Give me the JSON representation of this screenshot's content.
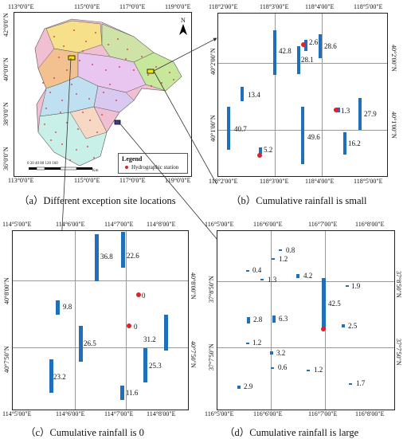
{
  "panel_a": {
    "caption": "（a）Different exception site locations",
    "top_ticks": [
      "113°0'0\"E",
      "115°0'0\"E",
      "117°0'0\"E",
      "119°0'0\"E"
    ],
    "bottom_ticks": [
      "113°0'0\"E",
      "115°0'0\"E",
      "117°0'0\"E",
      "119°0'0\"E"
    ],
    "left_ticks": [
      "42°0'0\"N",
      "40°0'0\"N",
      "38°0'0\"N",
      "36°0'0\"N"
    ],
    "north_label": "N",
    "legend_title": "Legend",
    "legend_item": "Hydrographic station",
    "scale_numbers": "0  20  40    80    120   160",
    "scale_unit": "Km"
  },
  "panel_b": {
    "caption": "（b）Cumulative rainfall is small",
    "top_ticks": [
      "118°2'00\"E",
      "118°3'00\"E",
      "118°4'00\"E",
      "118°5'00\"E"
    ],
    "bottom_ticks": [
      "118°2'00\"E",
      "118°3'00\"E",
      "118°4'00\"E",
      "118°5'00\"E"
    ],
    "left_ticks": [
      "40°2'00\"N",
      "40°1'00\"N"
    ],
    "right_ticks": [
      "40°2'00\"N",
      "40°1'00\"N"
    ],
    "values": [
      "42.8",
      "2.6",
      "28.6",
      "28.1",
      "13.4",
      "1.3",
      "27.9",
      "40.7",
      "49.6",
      "16.2",
      "5.2"
    ]
  },
  "panel_c": {
    "caption": "（c）Cumulative rainfall is 0",
    "top_ticks": [
      "114°5'00\"E",
      "114°6'00\"E",
      "114°7'00\"E",
      "114°8'00\"E"
    ],
    "bottom_ticks": [
      "114°5'00\"E",
      "114°6'00\"E",
      "114°7'00\"E",
      "114°8'00\"E"
    ],
    "left_ticks": [
      "40°8'00\"N",
      "40°7'50\"N"
    ],
    "right_ticks": [
      "40°8'00\"N",
      "40°7'50\"N"
    ],
    "values": [
      "36.8",
      "22.6",
      "0",
      "9.8",
      "0",
      "31.2",
      "26.5",
      "25.3",
      "23.2",
      "11.6"
    ]
  },
  "panel_d": {
    "caption": "（d）Cumulative rainfall is large",
    "top_ticks": [
      "116°5'00\"E",
      "116°6'00\"E",
      "116°7'00\"E",
      "116°8'00\"E"
    ],
    "bottom_ticks": [
      "116°5'00\"E",
      "116°6'00\"E",
      "116°7'00\"E",
      "116°8'00\"E"
    ],
    "left_ticks": [
      "37°8'50\"N",
      "37°7'50\"N"
    ],
    "right_ticks": [
      "37°8'50\"N",
      "37°7'50\"N"
    ],
    "values": [
      "0.8",
      "1.2",
      "0.4",
      "1.3",
      "4.2",
      "1.9",
      "42.5",
      "2.8",
      "6.3",
      "2.5",
      "1.2",
      "3.2",
      "0.6",
      "1.2",
      "2.9",
      "1.7"
    ]
  },
  "colors": {
    "bar": "#1f6fba",
    "station": "#e0202a",
    "frame": "#222222"
  }
}
